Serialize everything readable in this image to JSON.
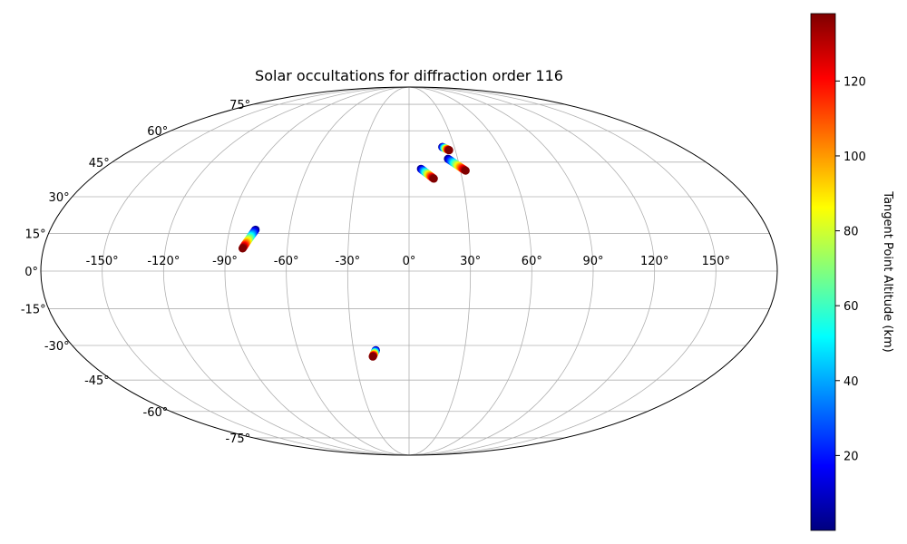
{
  "chart_data": {
    "type": "scatter",
    "projection": "mollweide",
    "title": "Solar occultations for diffraction order 116",
    "xlabel": "",
    "ylabel": "",
    "grid": true,
    "xlim": [
      -180,
      180
    ],
    "ylim": [
      -90,
      90
    ],
    "x_ticks": [
      -150,
      -120,
      -90,
      -60,
      -30,
      0,
      30,
      60,
      90,
      120,
      150
    ],
    "x_tick_labels": [
      "-150°",
      "-120°",
      "-90°",
      "-60°",
      "-30°",
      "0°",
      "30°",
      "60°",
      "90°",
      "120°",
      "150°"
    ],
    "y_ticks": [
      -75,
      -60,
      -45,
      -30,
      -15,
      0,
      15,
      30,
      45,
      60,
      75
    ],
    "y_tick_labels": [
      "-75°",
      "-60°",
      "-45°",
      "-30°",
      "-15°",
      "0°",
      "15°",
      "30°",
      "45°",
      "60°",
      "75°"
    ],
    "colorbar": {
      "label": "Tangent Point Altitude (km)",
      "colormap": "jet",
      "range": [
        0,
        138
      ],
      "ticks": [
        20,
        40,
        60,
        80,
        100,
        120
      ],
      "tick_labels": [
        "20",
        "40",
        "60",
        "80",
        "100",
        "120"
      ],
      "placement": "right"
    },
    "series": [
      {
        "lon_start": 7,
        "lat_start": 42.0,
        "lon_end": 14,
        "lat_end": 37.7,
        "alt_start": 0,
        "alt_end": 138
      },
      {
        "lon_start": 22,
        "lat_start": 52.0,
        "lon_end": 26,
        "lat_end": 50.5,
        "alt_start": 0,
        "alt_end": 138
      },
      {
        "lon_start": 24,
        "lat_start": 46.5,
        "lon_end": 33,
        "lat_end": 41.2,
        "alt_start": 0,
        "alt_end": 138
      },
      {
        "lon_start": -77,
        "lat_start": 16.5,
        "lon_end": -82,
        "lat_end": 9.0,
        "alt_start": 0,
        "alt_end": 138
      },
      {
        "lon_start": -18,
        "lat_start": -32.0,
        "lon_end": -20,
        "lat_end": -34.7,
        "alt_start": 0,
        "alt_end": 138
      }
    ]
  }
}
